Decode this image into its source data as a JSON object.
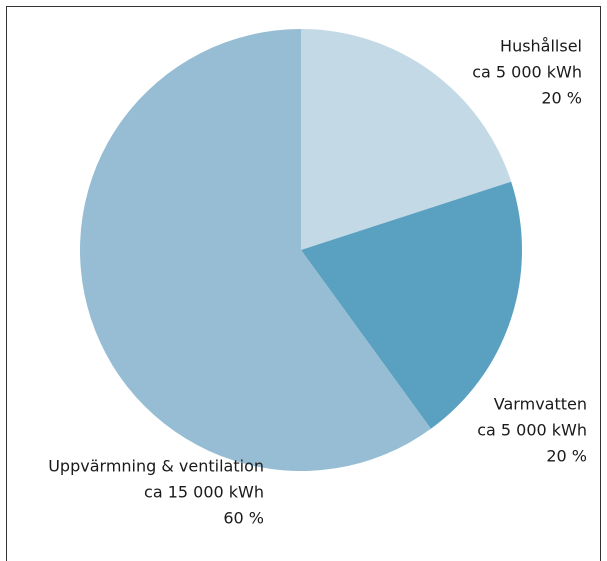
{
  "chart_data": {
    "type": "pie",
    "categories": [
      "Hushållsel",
      "Varmvatten",
      "Uppvärmning & ventilation"
    ],
    "values": [
      20,
      20,
      60
    ],
    "value_labels": [
      "20 %",
      "20 %",
      "60 %"
    ],
    "energy_labels": [
      "ca 5 000 kWh",
      "ca 5 000 kWh",
      "ca 15 000 kWh"
    ],
    "colors": [
      "#c3d9e6",
      "#5aa0c0",
      "#96bdd3"
    ]
  }
}
